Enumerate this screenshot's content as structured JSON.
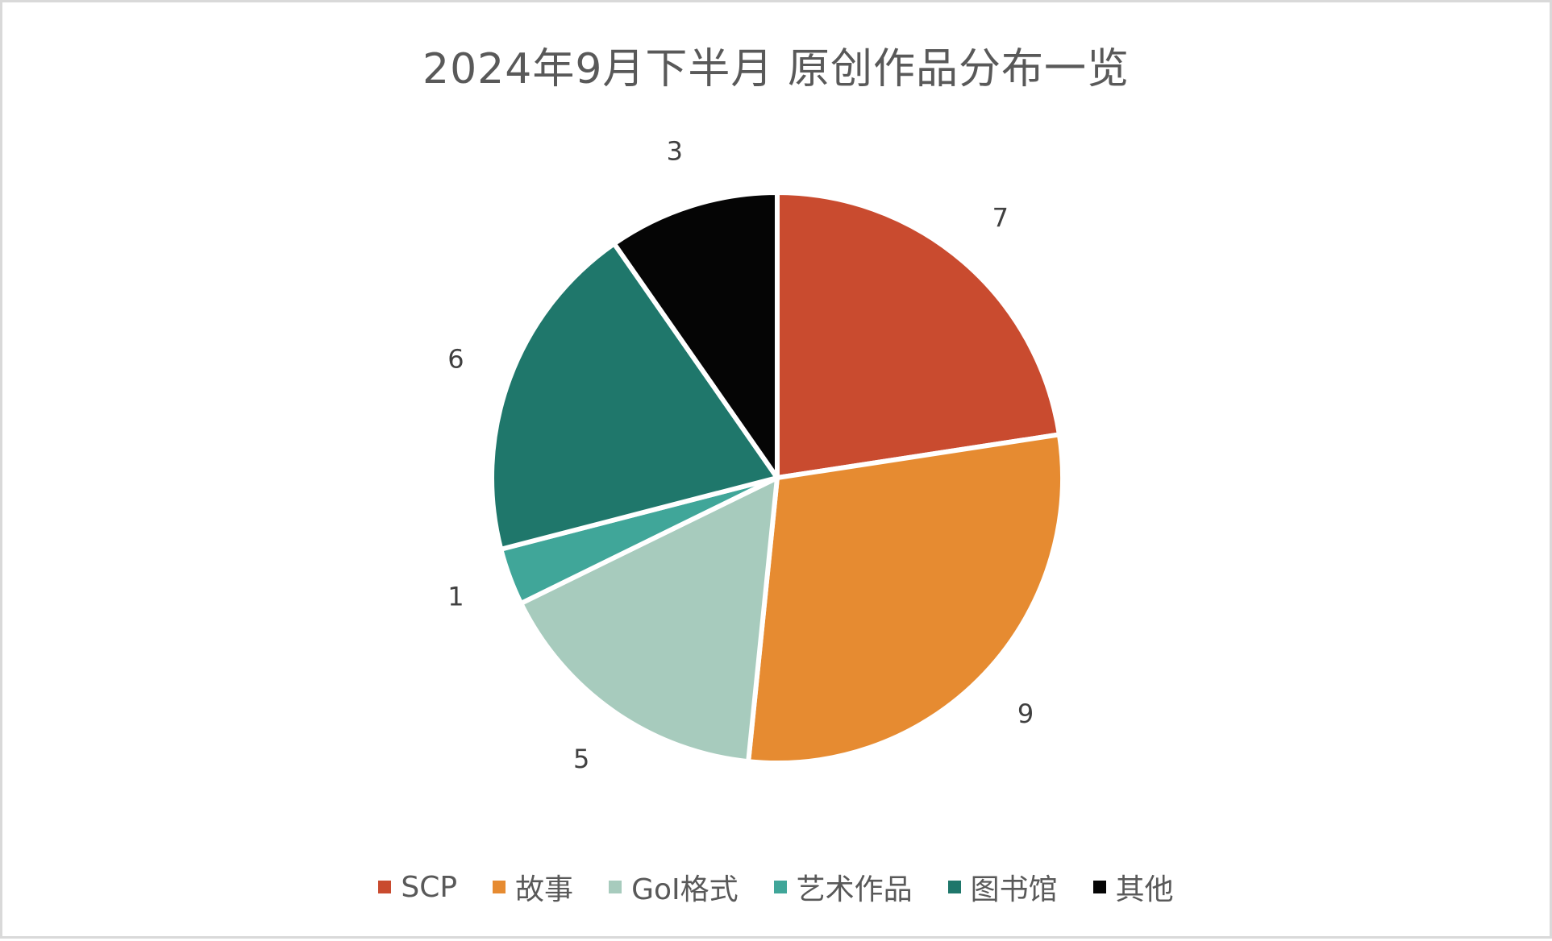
{
  "chart_data": {
    "type": "pie",
    "title": "2024年9月下半月 原创作品分布一览",
    "categories": [
      "SCP",
      "故事",
      "GoI格式",
      "艺术作品",
      "图书馆",
      "其他"
    ],
    "values": [
      7,
      9,
      5,
      1,
      6,
      3
    ],
    "colors": [
      "#c94b2f",
      "#e68b31",
      "#a7cbbd",
      "#40a699",
      "#1f776b",
      "#050505"
    ],
    "start_angle": "12 o'clock",
    "direction": "clockwise",
    "data_labels": [
      "7",
      "9",
      "5",
      "1",
      "6",
      "3"
    ],
    "legend_position": "bottom"
  },
  "title": "2024年9月下半月 原创作品分布一览",
  "legend": [
    {
      "label": "SCP",
      "color": "#c94b2f"
    },
    {
      "label": "故事",
      "color": "#e68b31"
    },
    {
      "label": "GoI格式",
      "color": "#a7cbbd"
    },
    {
      "label": "艺术作品",
      "color": "#40a699"
    },
    {
      "label": "图书馆",
      "color": "#1f776b"
    },
    {
      "label": "其他",
      "color": "#050505"
    }
  ]
}
